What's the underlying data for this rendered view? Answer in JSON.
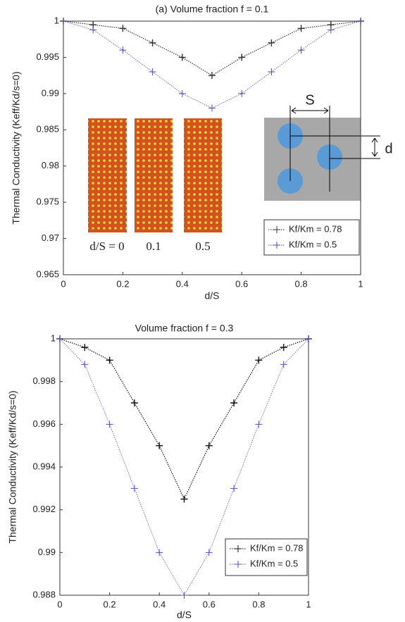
{
  "chart_data": [
    {
      "type": "line",
      "title": "(a) Volume fraction f = 0.1",
      "x_label": "d/S",
      "y_label": "Thermal Conductivity (Keff/Kd/s=0)",
      "x": [
        0,
        0.1,
        0.2,
        0.3,
        0.4,
        0.5,
        0.6,
        0.7,
        0.8,
        0.9,
        1
      ],
      "series": [
        {
          "name": "Kf/Km = 0.78",
          "color": "#333333",
          "values": [
            1,
            0.9995,
            0.999,
            0.997,
            0.995,
            0.9925,
            0.995,
            0.997,
            0.999,
            0.9995,
            1
          ]
        },
        {
          "name": "Kf/Km = 0.5",
          "color": "#4a4ab0",
          "values": [
            1,
            0.9988,
            0.996,
            0.993,
            0.99,
            0.988,
            0.99,
            0.993,
            0.996,
            0.9988,
            1
          ]
        }
      ],
      "xlim": [
        0,
        1
      ],
      "xticks": [
        0,
        0.2,
        0.4,
        0.6,
        0.8,
        1
      ],
      "ylim": [
        0.965,
        1
      ],
      "yticks": [
        0.965,
        0.97,
        0.975,
        0.98,
        0.985,
        0.99,
        0.995,
        1
      ],
      "legend": "lower right",
      "inset_labels": [
        "d/S = 0",
        "0.1",
        "0.5"
      ],
      "diagram_labels": [
        "S",
        "d"
      ]
    },
    {
      "type": "line",
      "title": "Volume fraction f = 0.3",
      "x_label": "d/S",
      "y_label": "Thermal Conductivity (Keff/Kd/s=0)",
      "x": [
        0,
        0.1,
        0.2,
        0.3,
        0.4,
        0.5,
        0.6,
        0.7,
        0.8,
        0.9,
        1
      ],
      "series": [
        {
          "name": "Kf/Km = 0.78",
          "color": "#111111",
          "values": [
            1,
            0.9996,
            0.999,
            0.997,
            0.995,
            0.9925,
            0.995,
            0.997,
            0.999,
            0.9996,
            1
          ]
        },
        {
          "name": "Kf/Km = 0.5",
          "color": "#5050c0",
          "values": [
            1,
            0.9988,
            0.996,
            0.993,
            0.99,
            0.988,
            0.99,
            0.993,
            0.996,
            0.9988,
            1
          ]
        }
      ],
      "xlim": [
        0,
        1
      ],
      "xticks": [
        0,
        0.2,
        0.4,
        0.6,
        0.8,
        1
      ],
      "ylim": [
        0.988,
        1
      ],
      "yticks": [
        0.988,
        0.99,
        0.992,
        0.994,
        0.996,
        0.998,
        1
      ],
      "legend": "lower right"
    }
  ]
}
